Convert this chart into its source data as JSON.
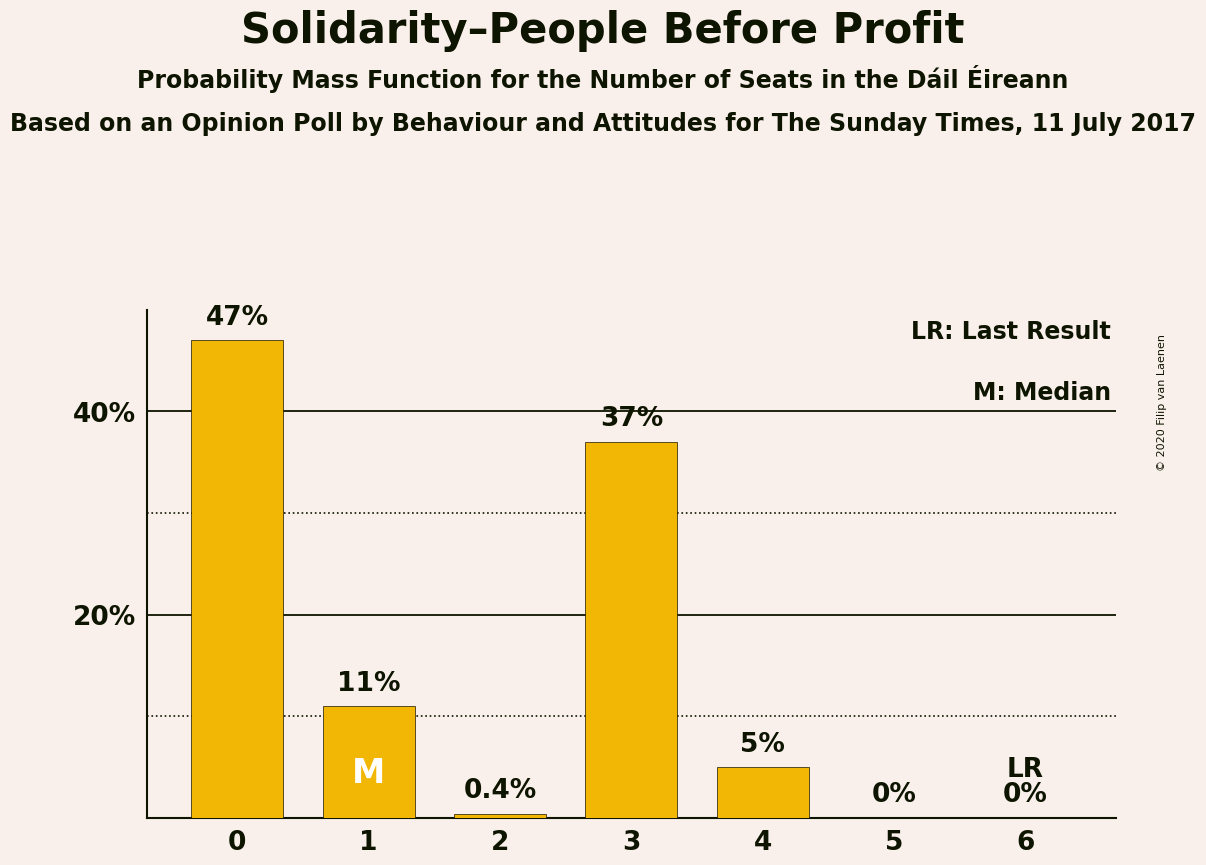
{
  "title": "Solidarity–People Before Profit",
  "subtitle1": "Probability Mass Function for the Number of Seats in the Dáil Éireann",
  "subtitle2": "Based on an Opinion Poll by Behaviour and Attitudes for The Sunday Times, 11 July 2017",
  "copyright": "© 2020 Filip van Laenen",
  "categories": [
    0,
    1,
    2,
    3,
    4,
    5,
    6
  ],
  "values": [
    47,
    11,
    0.4,
    37,
    5,
    0,
    0
  ],
  "bar_color": "#F2B705",
  "bar_edge_color": "#1a1200",
  "background_color": "#FAF0EB",
  "text_color": "#0d1400",
  "ylim_max": 50,
  "yticks": [
    20,
    40
  ],
  "ytick_labels": [
    "20%",
    "40%"
  ],
  "dotted_lines": [
    10,
    30
  ],
  "solid_lines": [
    20,
    40
  ],
  "bar_labels": [
    "47%",
    "11%",
    "0.4%",
    "37%",
    "5%",
    "0%",
    "0%"
  ],
  "median_bar_idx": 1,
  "median_label": "M",
  "lr_bar_idx": 6,
  "lr_label": "LR",
  "legend_lr": "LR: Last Result",
  "legend_m": "M: Median",
  "title_fontsize": 30,
  "subtitle1_fontsize": 17,
  "subtitle2_fontsize": 17,
  "label_fontsize": 19,
  "tick_fontsize": 19,
  "legend_fontsize": 17,
  "copyright_fontsize": 8
}
